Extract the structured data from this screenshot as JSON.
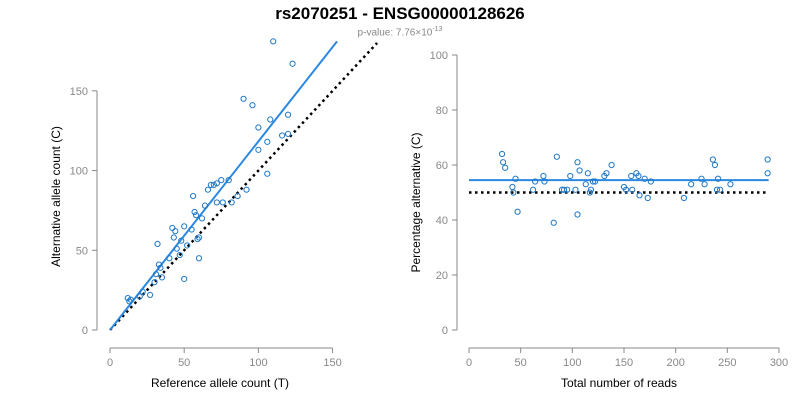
{
  "figure": {
    "title": "rs2070251 - ENSG00000128626",
    "subtitle_prefix": "p-value: 7.76×10",
    "subtitle_exponent": "-13",
    "colors": {
      "points": "#1f78c8",
      "fit_line": "#2b88e0",
      "reference_line": "#000000",
      "axis": "#888888",
      "text": "#000000"
    }
  },
  "chart_data": [
    {
      "type": "scatter",
      "xlabel": "Reference allele count (T)",
      "ylabel": "Alternative allele count (C)",
      "xlim": [
        0,
        155
      ],
      "ylim": [
        0,
        180
      ],
      "xticks": [
        0,
        50,
        100,
        150
      ],
      "yticks": [
        0,
        50,
        100,
        150
      ],
      "grid": false,
      "points": [
        {
          "x": 12,
          "y": 20
        },
        {
          "x": 13,
          "y": 18
        },
        {
          "x": 14,
          "y": 19
        },
        {
          "x": 20,
          "y": 21
        },
        {
          "x": 22,
          "y": 24
        },
        {
          "x": 27,
          "y": 22
        },
        {
          "x": 30,
          "y": 30
        },
        {
          "x": 31,
          "y": 35
        },
        {
          "x": 32,
          "y": 54
        },
        {
          "x": 33,
          "y": 41
        },
        {
          "x": 34,
          "y": 39
        },
        {
          "x": 35,
          "y": 33
        },
        {
          "x": 40,
          "y": 45
        },
        {
          "x": 42,
          "y": 64
        },
        {
          "x": 43,
          "y": 58
        },
        {
          "x": 44,
          "y": 62
        },
        {
          "x": 45,
          "y": 51
        },
        {
          "x": 47,
          "y": 47
        },
        {
          "x": 48,
          "y": 56
        },
        {
          "x": 50,
          "y": 65
        },
        {
          "x": 50,
          "y": 32
        },
        {
          "x": 52,
          "y": 53
        },
        {
          "x": 55,
          "y": 63
        },
        {
          "x": 56,
          "y": 84
        },
        {
          "x": 57,
          "y": 74
        },
        {
          "x": 58,
          "y": 72
        },
        {
          "x": 59,
          "y": 57
        },
        {
          "x": 60,
          "y": 45
        },
        {
          "x": 60,
          "y": 58
        },
        {
          "x": 62,
          "y": 70
        },
        {
          "x": 64,
          "y": 78
        },
        {
          "x": 66,
          "y": 88
        },
        {
          "x": 68,
          "y": 91
        },
        {
          "x": 70,
          "y": 91
        },
        {
          "x": 72,
          "y": 92
        },
        {
          "x": 72,
          "y": 80
        },
        {
          "x": 75,
          "y": 94
        },
        {
          "x": 76,
          "y": 80
        },
        {
          "x": 80,
          "y": 94
        },
        {
          "x": 82,
          "y": 80
        },
        {
          "x": 86,
          "y": 84
        },
        {
          "x": 90,
          "y": 145
        },
        {
          "x": 92,
          "y": 88
        },
        {
          "x": 96,
          "y": 141
        },
        {
          "x": 100,
          "y": 113
        },
        {
          "x": 100,
          "y": 127
        },
        {
          "x": 106,
          "y": 118
        },
        {
          "x": 106,
          "y": 98
        },
        {
          "x": 108,
          "y": 132
        },
        {
          "x": 110,
          "y": 181
        },
        {
          "x": 116,
          "y": 122
        },
        {
          "x": 120,
          "y": 123
        },
        {
          "x": 120,
          "y": 135
        },
        {
          "x": 123,
          "y": 167
        }
      ],
      "fit_line": {
        "x": [
          0,
          153
        ],
        "y": [
          0,
          181
        ]
      },
      "reference_line": {
        "x": [
          0,
          180
        ],
        "y": [
          0,
          180
        ]
      }
    },
    {
      "type": "scatter",
      "xlabel": "Total number of reads",
      "ylabel": "Percentage alternative (C)",
      "xlim": [
        0,
        300
      ],
      "ylim": [
        0,
        100
      ],
      "xticks": [
        0,
        50,
        100,
        150,
        200,
        250,
        300
      ],
      "yticks": [
        0,
        20,
        40,
        60,
        80,
        100
      ],
      "grid": false,
      "points": [
        {
          "x": 32,
          "y": 64
        },
        {
          "x": 33,
          "y": 61
        },
        {
          "x": 35,
          "y": 59
        },
        {
          "x": 42,
          "y": 52
        },
        {
          "x": 43,
          "y": 50
        },
        {
          "x": 45,
          "y": 55
        },
        {
          "x": 47,
          "y": 43
        },
        {
          "x": 62,
          "y": 51
        },
        {
          "x": 64,
          "y": 54
        },
        {
          "x": 72,
          "y": 56
        },
        {
          "x": 73,
          "y": 54
        },
        {
          "x": 82,
          "y": 39
        },
        {
          "x": 85,
          "y": 63
        },
        {
          "x": 90,
          "y": 51
        },
        {
          "x": 92,
          "y": 51
        },
        {
          "x": 95,
          "y": 51
        },
        {
          "x": 98,
          "y": 56
        },
        {
          "x": 103,
          "y": 51
        },
        {
          "x": 105,
          "y": 61
        },
        {
          "x": 105,
          "y": 42
        },
        {
          "x": 107,
          "y": 58
        },
        {
          "x": 113,
          "y": 53
        },
        {
          "x": 115,
          "y": 57
        },
        {
          "x": 117,
          "y": 50
        },
        {
          "x": 118,
          "y": 51
        },
        {
          "x": 120,
          "y": 54
        },
        {
          "x": 122,
          "y": 54
        },
        {
          "x": 131,
          "y": 56
        },
        {
          "x": 133,
          "y": 57
        },
        {
          "x": 138,
          "y": 60
        },
        {
          "x": 150,
          "y": 52
        },
        {
          "x": 152,
          "y": 51
        },
        {
          "x": 157,
          "y": 56
        },
        {
          "x": 158,
          "y": 51
        },
        {
          "x": 162,
          "y": 57
        },
        {
          "x": 164,
          "y": 56
        },
        {
          "x": 165,
          "y": 49
        },
        {
          "x": 170,
          "y": 55
        },
        {
          "x": 173,
          "y": 48
        },
        {
          "x": 176,
          "y": 54
        },
        {
          "x": 208,
          "y": 48
        },
        {
          "x": 215,
          "y": 53
        },
        {
          "x": 225,
          "y": 55
        },
        {
          "x": 228,
          "y": 53
        },
        {
          "x": 236,
          "y": 62
        },
        {
          "x": 238,
          "y": 60
        },
        {
          "x": 240,
          "y": 51
        },
        {
          "x": 241,
          "y": 55
        },
        {
          "x": 243,
          "y": 51
        },
        {
          "x": 253,
          "y": 53
        },
        {
          "x": 289,
          "y": 62
        },
        {
          "x": 289,
          "y": 57
        }
      ],
      "fit_line": {
        "x": [
          0,
          290
        ],
        "y": [
          54.5,
          54.5
        ]
      },
      "reference_line": {
        "x": [
          0,
          290
        ],
        "y": [
          50,
          50
        ]
      }
    }
  ]
}
